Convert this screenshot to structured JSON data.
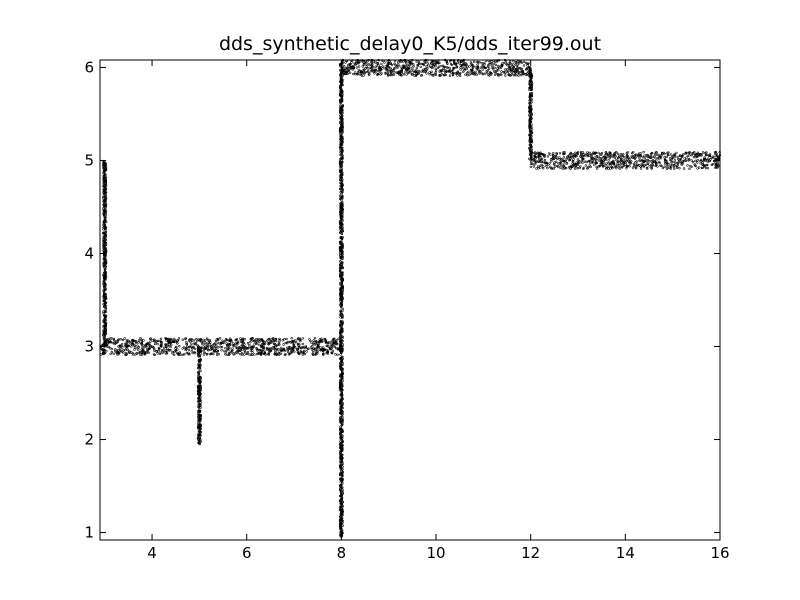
{
  "chart_data": {
    "type": "scatter",
    "title": "dds_synthetic_delay0_K5/dds_iter99.out",
    "xlabel": "",
    "ylabel": "",
    "xlim": [
      2.9,
      16
    ],
    "ylim": [
      0.92,
      6.08
    ],
    "xticks": [
      4,
      6,
      8,
      10,
      12,
      14,
      16
    ],
    "yticks": [
      1,
      2,
      3,
      4,
      5,
      6
    ],
    "x_tick_labels": [
      "4",
      "6",
      "8",
      "10",
      "12",
      "14",
      "16"
    ],
    "y_tick_labels": [
      "1",
      "2",
      "3",
      "4",
      "5",
      "6"
    ],
    "grid": false,
    "marker_color": "#000000",
    "segments": [
      {
        "kind": "horizontal",
        "x": [
          2.9,
          8.0
        ],
        "y": 3.0,
        "spread": 0.09
      },
      {
        "kind": "vertical",
        "x": 3.0,
        "y": [
          3.0,
          5.0
        ],
        "spread": 0.03
      },
      {
        "kind": "vertical",
        "x": 5.0,
        "y": [
          1.95,
          3.0
        ],
        "spread": 0.03
      },
      {
        "kind": "vertical",
        "x": 8.0,
        "y": [
          0.95,
          6.05
        ],
        "spread": 0.03
      },
      {
        "kind": "horizontal",
        "x": [
          8.0,
          12.0
        ],
        "y": 6.0,
        "spread": 0.09
      },
      {
        "kind": "vertical",
        "x": 12.0,
        "y": [
          5.0,
          6.0
        ],
        "spread": 0.03
      },
      {
        "kind": "horizontal",
        "x": [
          12.0,
          16.0
        ],
        "y": 5.0,
        "spread": 0.09
      }
    ]
  }
}
